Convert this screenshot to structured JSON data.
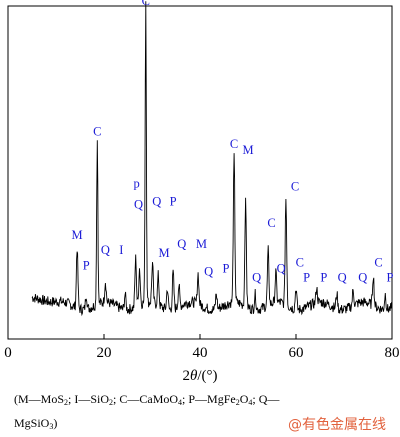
{
  "chart_data": {
    "type": "line",
    "xlabel": "2θ/(°)",
    "xlim": [
      0,
      80
    ],
    "xticks": [
      0,
      20,
      40,
      60,
      80
    ],
    "grid": false,
    "series": [
      {
        "peaks": [
          {
            "x": 14.4,
            "h": 0.2
          },
          {
            "x": 16.3,
            "h": 0.05
          },
          {
            "x": 18.6,
            "h": 0.54
          },
          {
            "x": 20.3,
            "h": 0.07
          },
          {
            "x": 24.4,
            "h": 0.05
          },
          {
            "x": 26.6,
            "h": 0.16
          },
          {
            "x": 27.4,
            "h": 0.12
          },
          {
            "x": 28.7,
            "h": 1.0
          },
          {
            "x": 30.1,
            "h": 0.13
          },
          {
            "x": 31.3,
            "h": 0.1
          },
          {
            "x": 33.2,
            "h": 0.07
          },
          {
            "x": 34.4,
            "h": 0.12
          },
          {
            "x": 35.6,
            "h": 0.07
          },
          {
            "x": 39.6,
            "h": 0.1
          },
          {
            "x": 43.4,
            "h": 0.05
          },
          {
            "x": 47.1,
            "h": 0.48
          },
          {
            "x": 49.5,
            "h": 0.34
          },
          {
            "x": 51.5,
            "h": 0.05
          },
          {
            "x": 54.2,
            "h": 0.18
          },
          {
            "x": 55.8,
            "h": 0.1
          },
          {
            "x": 57.9,
            "h": 0.35
          },
          {
            "x": 60.0,
            "h": 0.07
          },
          {
            "x": 64.3,
            "h": 0.05
          },
          {
            "x": 68.5,
            "h": 0.05
          },
          {
            "x": 71.9,
            "h": 0.05
          },
          {
            "x": 76.1,
            "h": 0.1
          },
          {
            "x": 78.6,
            "h": 0.05
          }
        ]
      }
    ],
    "annotations": [
      {
        "text": "C",
        "x": 28.7,
        "y": 1.03
      },
      {
        "text": "C",
        "x": 18.6,
        "y": 0.6
      },
      {
        "text": "M",
        "x": 14.4,
        "y": 0.26
      },
      {
        "text": "P",
        "x": 16.3,
        "y": 0.16
      },
      {
        "text": "Q",
        "x": 20.3,
        "y": 0.21
      },
      {
        "text": "I",
        "x": 23.6,
        "y": 0.21
      },
      {
        "text": "p",
        "x": 26.8,
        "y": 0.43
      },
      {
        "text": "Q",
        "x": 27.2,
        "y": 0.36
      },
      {
        "text": "Q",
        "x": 31.0,
        "y": 0.37
      },
      {
        "text": "P",
        "x": 34.4,
        "y": 0.37
      },
      {
        "text": "M",
        "x": 32.5,
        "y": 0.2
      },
      {
        "text": "Q",
        "x": 36.2,
        "y": 0.23
      },
      {
        "text": "M",
        "x": 40.3,
        "y": 0.23
      },
      {
        "text": "Q",
        "x": 41.8,
        "y": 0.14
      },
      {
        "text": "P",
        "x": 45.4,
        "y": 0.15
      },
      {
        "text": "C",
        "x": 47.1,
        "y": 0.56
      },
      {
        "text": "M",
        "x": 50.0,
        "y": 0.54
      },
      {
        "text": "Q",
        "x": 51.8,
        "y": 0.12
      },
      {
        "text": "C",
        "x": 54.9,
        "y": 0.3
      },
      {
        "text": "Q",
        "x": 56.9,
        "y": 0.15
      },
      {
        "text": "C",
        "x": 59.8,
        "y": 0.42
      },
      {
        "text": "C",
        "x": 60.8,
        "y": 0.17
      },
      {
        "text": "P",
        "x": 62.2,
        "y": 0.12
      },
      {
        "text": "P",
        "x": 65.8,
        "y": 0.12
      },
      {
        "text": "Q",
        "x": 69.6,
        "y": 0.12
      },
      {
        "text": "Q",
        "x": 73.9,
        "y": 0.12
      },
      {
        "text": "C",
        "x": 77.2,
        "y": 0.17
      },
      {
        "text": "P",
        "x": 80.3,
        "y": 0.12
      }
    ]
  },
  "legend": {
    "line1": [
      "(M—MoS",
      "2",
      "; I—SiO",
      "2",
      "; C—CaMoO",
      "4",
      "; P—MgFe",
      "2",
      "O",
      "4",
      "; Q—"
    ],
    "line2": [
      "MgSiO",
      "3",
      ")"
    ]
  },
  "watermark": "@有色金属在线",
  "colors": {
    "trace": "#000000",
    "labels": "#1a1ad6",
    "watermark": "#e2623e"
  }
}
